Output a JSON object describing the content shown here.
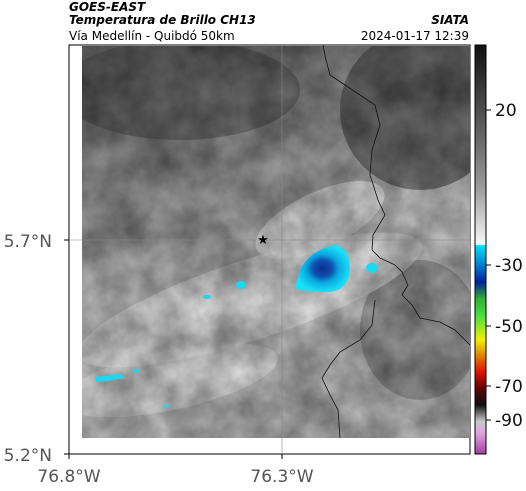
{
  "header": {
    "agency": "GOES-EAST",
    "product": "Temperatura de Brillo CH13",
    "region": "Vía Medellín - Quibdó 50km",
    "center": "SIATA",
    "datetime": "2024-01-17 12:39"
  },
  "map": {
    "y_axis_labels": [
      "5.7°N",
      "5.2°N"
    ],
    "x_axis_labels": [
      "76.8°W",
      "76.3°W"
    ],
    "marker_icon": "star-icon"
  },
  "colorbar": {
    "labels": [
      "20",
      "-30",
      "-50",
      "-70",
      "-90"
    ],
    "colors": {
      "warm_top": "#202020",
      "warm_mid": "#9a9a9a",
      "warm_low": "#f2f2f2",
      "cyan": "#00d8f0",
      "blue": "#1040a0",
      "green": "#20c020",
      "yellow": "#f0f000",
      "red": "#e02000",
      "dark": "#200000",
      "magenta": "#b040b0"
    }
  }
}
